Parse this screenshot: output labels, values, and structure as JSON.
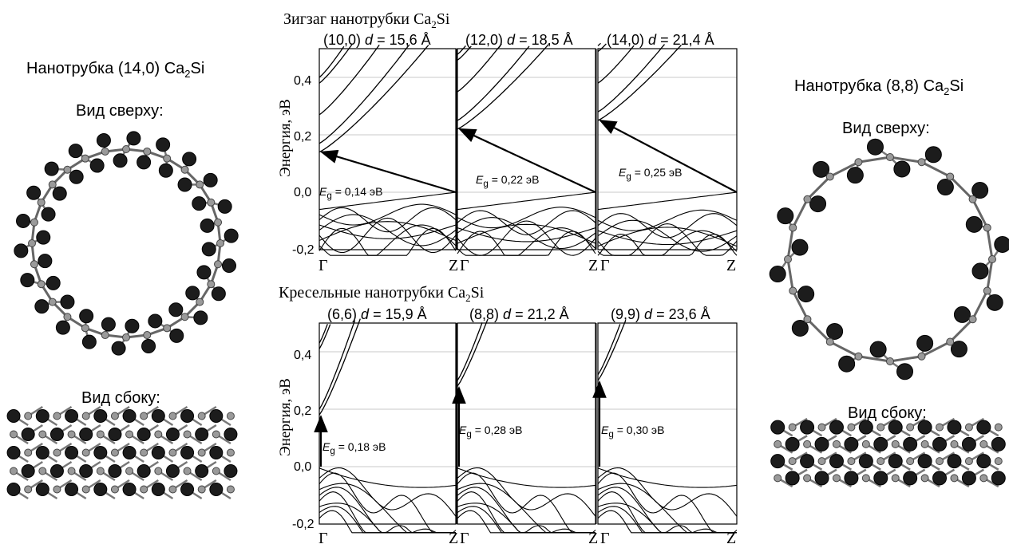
{
  "left": {
    "title_main": "Нанотрубка (14,0) Ca",
    "title_sub": "2",
    "title_end": "Si",
    "top_view": "Вид сверху:",
    "side_view": "Вид сбоку:"
  },
  "right": {
    "title_main": "Нанотрубка (8,8) Ca",
    "title_sub": "2",
    "title_end": "Si",
    "top_view": "Вид сверху:",
    "side_view": "Вид сбоку:"
  },
  "zigzag": {
    "title_main": "Зигзаг нанотрубки Ca",
    "title_sub": "2",
    "title_end": "Si",
    "panels": [
      {
        "index": "(10,0)",
        "d_label": "d",
        "d_value": "= 15,6 Å",
        "eg_value": "= 0,14 эВ"
      },
      {
        "index": "(12,0)",
        "d_label": "d",
        "d_value": "= 18,5 Å",
        "eg_value": "= 0,22 эВ"
      },
      {
        "index": "(14,0)",
        "d_label": "d",
        "d_value": "= 21,4 Å",
        "eg_value": "= 0,25 эВ"
      }
    ]
  },
  "armchair": {
    "title_main": "Кресельные нанотрубки Ca",
    "title_sub": "2",
    "title_end": "Si",
    "panels": [
      {
        "index": "(6,6)",
        "d_label": "d",
        "d_value": "= 15,9 Å",
        "eg_value": "= 0,18 эВ"
      },
      {
        "index": "(8,8)",
        "d_label": "d",
        "d_value": "= 21,2 Å",
        "eg_value": "= 0,28 эВ"
      },
      {
        "index": "(9,9)",
        "d_label": "d",
        "d_value": "= 23,6 Å",
        "eg_value": "= 0,30 эВ"
      }
    ]
  },
  "axis": {
    "ylabel": "Энергия, эВ",
    "yticks": [
      "0,4",
      "0,2",
      "0,0",
      "-0,2"
    ],
    "k_start": "Γ",
    "k_end": "Z",
    "eg_symbol": "E",
    "eg_sub": "g"
  },
  "chart_data": [
    {
      "type": "line",
      "title": "Зигзаг нанотрубки Ca2Si",
      "ylabel": "Энергия, эВ",
      "ylim": [
        -0.2,
        0.5
      ],
      "x": [
        "Γ",
        "Z"
      ],
      "panels": [
        {
          "name": "(10,0)",
          "gap_eV": 0.14,
          "cb_min_gamma": 0.14,
          "vb_max_Z": 0.0
        },
        {
          "name": "(12,0)",
          "gap_eV": 0.22,
          "cb_min_gamma": 0.22,
          "vb_max_Z": 0.0
        },
        {
          "name": "(14,0)",
          "gap_eV": 0.25,
          "cb_min_gamma": 0.25,
          "vb_max_Z": 0.0
        }
      ]
    },
    {
      "type": "line",
      "title": "Кресельные нанотрубки Ca2Si",
      "ylabel": "Энергия, эВ",
      "ylim": [
        -0.2,
        0.5
      ],
      "x": [
        "Γ",
        "Z"
      ],
      "panels": [
        {
          "name": "(6,6)",
          "gap_eV": 0.18,
          "cb_min_gamma": 0.18,
          "vb_max_gamma": 0.0
        },
        {
          "name": "(8,8)",
          "gap_eV": 0.28,
          "cb_min_gamma": 0.28,
          "vb_max_gamma": 0.0
        },
        {
          "name": "(9,9)",
          "gap_eV": 0.3,
          "cb_min_gamma": 0.3,
          "vb_max_gamma": 0.0
        }
      ]
    }
  ]
}
